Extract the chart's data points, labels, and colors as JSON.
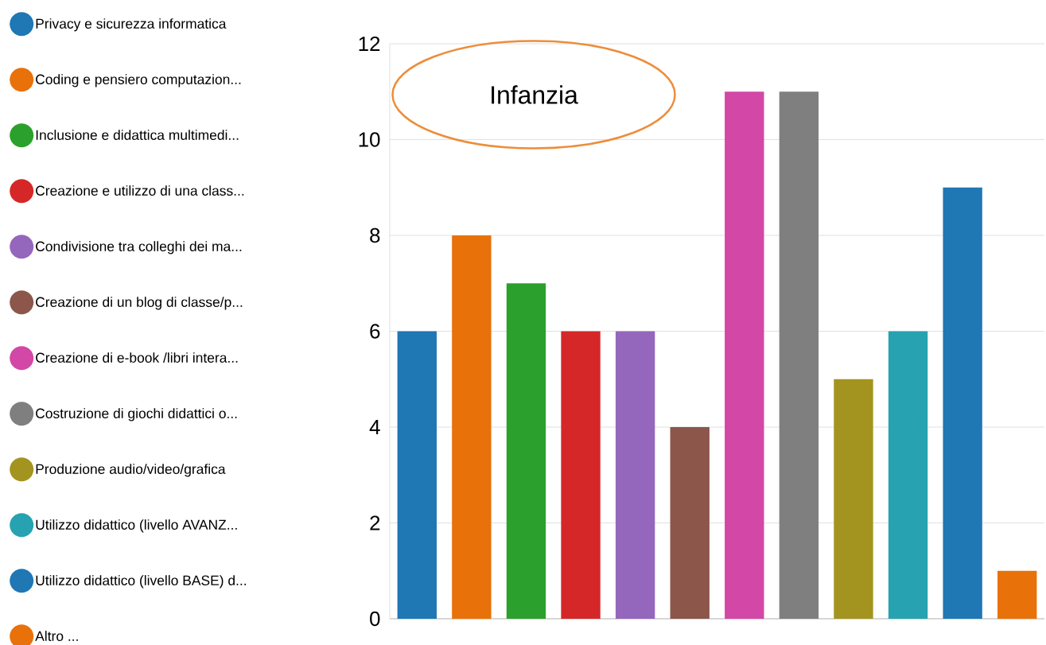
{
  "chart_data": {
    "type": "bar",
    "title": "Infanzia",
    "categories": [
      null,
      null,
      null,
      null,
      null,
      null,
      null,
      null,
      null,
      null,
      null,
      null
    ],
    "series": [
      {
        "name": "Privacy e sicurezza informatica",
        "color": "#1f77b4",
        "values": [
          6,
          null,
          null,
          null,
          null,
          null,
          null,
          null,
          null,
          null,
          null,
          null
        ]
      },
      {
        "name": "Coding e pensiero computazion...",
        "color": "#e8710a",
        "values": [
          null,
          8,
          null,
          null,
          null,
          null,
          null,
          null,
          null,
          null,
          null,
          null
        ]
      },
      {
        "name": "Inclusione e didattica multimedi...",
        "color": "#2ca02c",
        "values": [
          null,
          null,
          7,
          null,
          null,
          null,
          null,
          null,
          null,
          null,
          null,
          null
        ]
      },
      {
        "name": "Creazione e utilizzo di una class...",
        "color": "#d62728",
        "values": [
          null,
          null,
          null,
          6,
          null,
          null,
          null,
          null,
          null,
          null,
          null,
          null
        ]
      },
      {
        "name": "Condivisione tra colleghi dei ma...",
        "color": "#9467bd",
        "values": [
          null,
          null,
          null,
          null,
          6,
          null,
          null,
          null,
          null,
          null,
          null,
          null
        ]
      },
      {
        "name": "Creazione di un blog di classe/p...",
        "color": "#8c564b",
        "values": [
          null,
          null,
          null,
          null,
          null,
          4,
          null,
          null,
          null,
          null,
          null,
          null
        ]
      },
      {
        "name": "Creazione di e-book /libri intera...",
        "color": "#d347a6",
        "values": [
          null,
          null,
          null,
          null,
          null,
          null,
          11,
          null,
          null,
          null,
          null,
          null
        ]
      },
      {
        "name": "Costruzione di giochi didattici o...",
        "color": "#7f7f7f",
        "values": [
          null,
          null,
          null,
          null,
          null,
          null,
          null,
          11,
          null,
          null,
          null,
          null
        ]
      },
      {
        "name": "Produzione audio/video/grafica",
        "color": "#a39420",
        "values": [
          null,
          null,
          null,
          null,
          null,
          null,
          null,
          null,
          5,
          null,
          null,
          null
        ]
      },
      {
        "name": "Utilizzo didattico (livello AVANZ...",
        "color": "#27a2b0",
        "values": [
          null,
          null,
          null,
          null,
          null,
          null,
          null,
          null,
          null,
          6,
          null,
          null
        ]
      },
      {
        "name": "Utilizzo didattico (livello BASE) d...",
        "color": "#1f77b4",
        "values": [
          null,
          null,
          null,
          null,
          null,
          null,
          null,
          null,
          null,
          null,
          9,
          null
        ]
      },
      {
        "name": "Altro ...",
        "color": "#e8710a",
        "values": [
          null,
          null,
          null,
          null,
          null,
          null,
          null,
          null,
          null,
          null,
          null,
          1
        ]
      }
    ],
    "ylim": [
      0,
      12
    ],
    "yticks": [
      0,
      2,
      4,
      6,
      8,
      10,
      12
    ],
    "grid": "y",
    "legend": "left"
  }
}
